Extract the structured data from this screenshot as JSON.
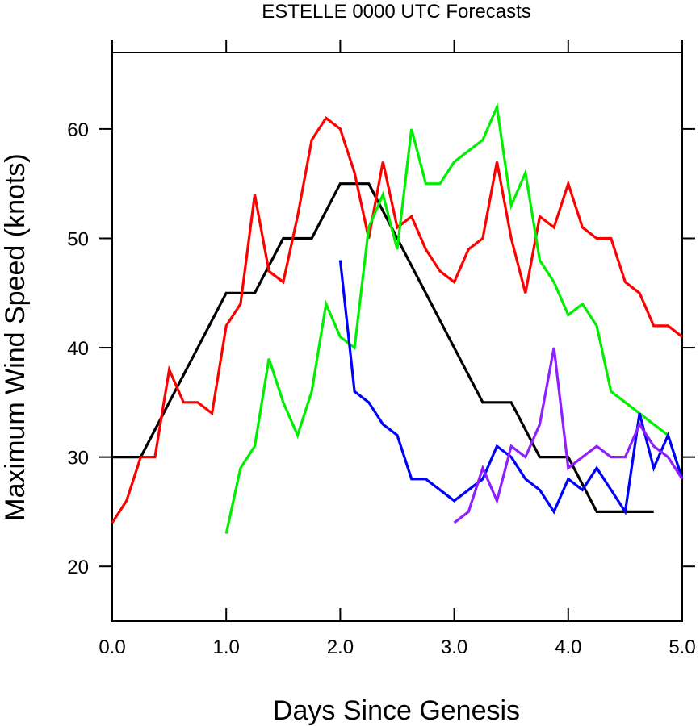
{
  "chart_data": {
    "type": "line",
    "title": "ESTELLE 0000 UTC Forecasts",
    "xlabel": "Days Since Genesis",
    "ylabel": "Maximum Wind Speed (knots)",
    "xlim": [
      0,
      5
    ],
    "ylim": [
      15,
      67
    ],
    "x_ticks": [
      0,
      1,
      2,
      3,
      4,
      5
    ],
    "x_tick_labels": [
      "0.0",
      "1.0",
      "2.0",
      "3.0",
      "4.0",
      "5.0"
    ],
    "y_ticks": [
      20,
      30,
      40,
      50,
      60
    ],
    "y_tick_labels": [
      "20",
      "30",
      "40",
      "50",
      "60"
    ],
    "grid": false,
    "legend": "none",
    "series": [
      {
        "color": "#000000",
        "x": [
          0,
          0.25,
          0.5,
          0.75,
          1.0,
          1.25,
          1.5,
          1.75,
          2.0,
          2.25,
          2.5,
          2.75,
          3.0,
          3.25,
          3.5,
          3.75,
          4.0,
          4.25,
          4.5,
          4.75
        ],
        "y": [
          30,
          30,
          35,
          40,
          45,
          45,
          50,
          50,
          55,
          55,
          50,
          45,
          40,
          35,
          35,
          30,
          30,
          25,
          25,
          25
        ]
      },
      {
        "color": "#ff0000",
        "x": [
          0,
          0.125,
          0.25,
          0.375,
          0.5,
          0.625,
          0.75,
          0.875,
          1.0,
          1.125,
          1.25,
          1.375,
          1.5,
          1.625,
          1.75,
          1.875,
          2.0,
          2.125,
          2.25,
          2.375,
          2.5,
          2.625,
          2.75,
          2.875,
          3.0,
          3.125,
          3.25,
          3.375,
          3.5,
          3.625,
          3.75,
          3.875,
          4.0,
          4.125,
          4.25,
          4.375,
          4.5,
          4.625,
          4.75,
          4.875,
          5.0
        ],
        "y": [
          24,
          26,
          30,
          30,
          38,
          35,
          35,
          34,
          42,
          44,
          54,
          47,
          46,
          52,
          59,
          61,
          60,
          56,
          50,
          57,
          51,
          52,
          49,
          47,
          46,
          49,
          50,
          57,
          50,
          45,
          52,
          51,
          55,
          51,
          50,
          50,
          46,
          45,
          42,
          42,
          41
        ]
      },
      {
        "color": "#00ee00",
        "x": [
          1.0,
          1.125,
          1.25,
          1.375,
          1.5,
          1.625,
          1.75,
          1.875,
          2.0,
          2.125,
          2.25,
          2.375,
          2.5,
          2.625,
          2.75,
          2.875,
          3.0,
          3.125,
          3.25,
          3.375,
          3.5,
          3.625,
          3.75,
          3.875,
          4.0,
          4.125,
          4.25,
          4.375,
          4.5,
          4.625,
          4.75,
          4.875,
          5.0
        ],
        "y": [
          23,
          29,
          31,
          39,
          35,
          32,
          36,
          44,
          41,
          40,
          51,
          54,
          49,
          60,
          55,
          55,
          57,
          58,
          59,
          62,
          53,
          56,
          48,
          46,
          43,
          44,
          42,
          36,
          35,
          34,
          33,
          32,
          28
        ]
      },
      {
        "color": "#0000ff",
        "x": [
          2.0,
          2.125,
          2.25,
          2.375,
          2.5,
          2.625,
          2.75,
          2.875,
          3.0,
          3.125,
          3.25,
          3.375,
          3.5,
          3.625,
          3.75,
          3.875,
          4.0,
          4.125,
          4.25,
          4.375,
          4.5,
          4.625,
          4.75,
          4.875,
          5.0
        ],
        "y": [
          48,
          36,
          35,
          33,
          32,
          28,
          28,
          27,
          26,
          27,
          28,
          31,
          30,
          28,
          27,
          25,
          28,
          27,
          29,
          27,
          25,
          34,
          29,
          32,
          28
        ]
      },
      {
        "color": "#8f1fff",
        "x": [
          3.0,
          3.125,
          3.25,
          3.375,
          3.5,
          3.625,
          3.75,
          3.875,
          4.0,
          4.125,
          4.25,
          4.375,
          4.5,
          4.625,
          4.75,
          4.875,
          5.0
        ],
        "y": [
          24,
          25,
          29,
          26,
          31,
          30,
          33,
          40,
          29,
          30,
          31,
          30,
          30,
          33,
          31,
          30,
          28
        ]
      }
    ]
  }
}
